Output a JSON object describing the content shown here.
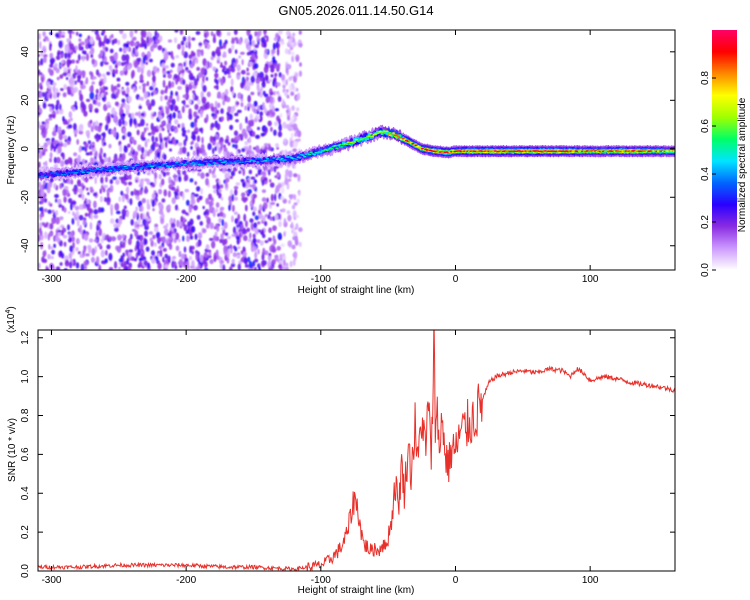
{
  "title": "GN05.2026.011.14.50.G14",
  "chart_data": [
    {
      "type": "heatmap",
      "name": "spectrogram",
      "xlabel": "Height of straight line (km)",
      "ylabel": "Frequency (Hz)",
      "xlim": [
        -310,
        163
      ],
      "ylim": [
        -50,
        49
      ],
      "xticks": [
        -300,
        -200,
        -100,
        0,
        100
      ],
      "yticks": [
        -40,
        -20,
        0,
        20,
        40
      ],
      "colorbar": {
        "label": "Normalized spectral amplitude",
        "range": [
          0,
          1
        ],
        "ticks": [
          0.0,
          0.2,
          0.4,
          0.6,
          0.8
        ],
        "colors": [
          "#ffffff",
          "#cc99ff",
          "#8a2be2",
          "#2a00ff",
          "#0066ff",
          "#00e5ff",
          "#00ff66",
          "#a0ff00",
          "#ffff00",
          "#ff8800",
          "#ff0000",
          "#ff0066"
        ]
      },
      "ridge": {
        "height_km": [
          -310,
          -250,
          -200,
          -150,
          -120,
          -100,
          -80,
          -65,
          -55,
          -45,
          -35,
          -25,
          -15,
          -5,
          0,
          20,
          50,
          80,
          100,
          130,
          163
        ],
        "frequency_hz": [
          -11,
          -8,
          -6,
          -5,
          -4,
          -1,
          2,
          5,
          7,
          6,
          3,
          0,
          -1,
          -1.5,
          -1,
          -1,
          -1,
          -1,
          -1,
          -1,
          -1
        ],
        "peak_amplitude": [
          0.35,
          0.4,
          0.4,
          0.4,
          0.45,
          0.5,
          0.6,
          0.65,
          0.7,
          0.8,
          0.85,
          0.85,
          0.9,
          0.9,
          0.9,
          0.92,
          0.95,
          0.95,
          0.85,
          0.9,
          0.8
        ]
      }
    },
    {
      "type": "line",
      "name": "snr",
      "xlabel": "Height of straight line (km)",
      "ylabel": "SNR (10 * v/v)",
      "scale_note": "(x10",
      "scale_exp": "4",
      "scale_close": ")",
      "xlim": [
        -310,
        163
      ],
      "ylim": [
        0,
        1.24
      ],
      "xticks": [
        -300,
        -200,
        -100,
        0,
        100
      ],
      "yticks": [
        0.0,
        0.2,
        0.4,
        0.6,
        0.8,
        1.0,
        1.2
      ],
      "series": [
        {
          "name": "SNR",
          "color": "#e8302a",
          "x": [
            -310,
            -280,
            -250,
            -230,
            -200,
            -170,
            -150,
            -120,
            -110,
            -100,
            -95,
            -90,
            -85,
            -80,
            -78,
            -75,
            -72,
            -70,
            -68,
            -65,
            -62,
            -60,
            -57,
            -55,
            -52,
            -50,
            -47,
            -45,
            -42,
            -40,
            -38,
            -35,
            -33,
            -30,
            -28,
            -25,
            -22,
            -20,
            -18,
            -16,
            -15,
            -14,
            -12,
            -10,
            -8,
            -5,
            -2,
            0,
            2,
            5,
            8,
            10,
            15,
            20,
            25,
            30,
            40,
            50,
            60,
            70,
            80,
            85,
            90,
            95,
            100,
            110,
            120,
            130,
            140,
            150,
            163
          ],
          "y": [
            0.02,
            0.02,
            0.03,
            0.03,
            0.03,
            0.02,
            0.02,
            0.01,
            0.02,
            0.03,
            0.05,
            0.08,
            0.12,
            0.2,
            0.28,
            0.38,
            0.3,
            0.2,
            0.14,
            0.12,
            0.1,
            0.12,
            0.1,
            0.14,
            0.12,
            0.18,
            0.28,
            0.45,
            0.35,
            0.55,
            0.4,
            0.65,
            0.5,
            0.75,
            0.55,
            0.8,
            0.6,
            0.92,
            0.5,
            1.24,
            0.7,
            0.95,
            0.55,
            0.85,
            0.6,
            0.55,
            0.65,
            0.6,
            0.68,
            0.72,
            0.74,
            0.76,
            0.8,
            0.88,
            0.97,
            1.0,
            1.02,
            1.03,
            1.02,
            1.04,
            1.03,
            1.0,
            1.04,
            1.02,
            0.98,
            1.0,
            0.99,
            0.97,
            0.96,
            0.95,
            0.93
          ]
        }
      ]
    }
  ]
}
